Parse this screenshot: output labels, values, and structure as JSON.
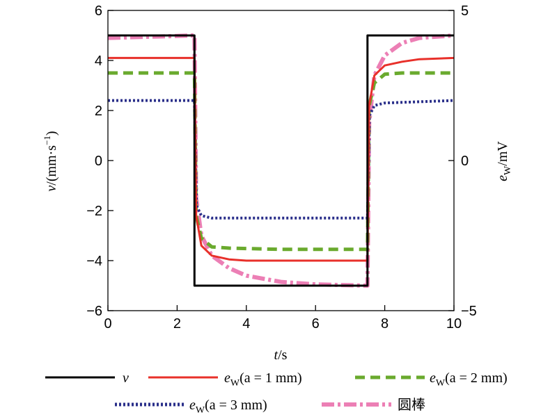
{
  "chart_data": {
    "type": "line",
    "xlabel": "t/s",
    "ylabel_left": "v/(mm·s⁻¹)",
    "ylabel_right": "e_W/mV",
    "xlim": [
      0,
      10
    ],
    "ylim_left": [
      -6,
      6
    ],
    "ylim_right": [
      -5,
      5
    ],
    "x_ticks": [
      "0",
      "2",
      "4",
      "6",
      "8",
      "10"
    ],
    "y_ticks_left": [
      "6",
      "4",
      "2",
      "0",
      "−2",
      "−4",
      "−6"
    ],
    "y_ticks_right": [
      "5",
      "0",
      "−5"
    ],
    "grid": false,
    "legend_position": "bottom",
    "series": [
      {
        "name": "v",
        "color": "#000000",
        "style": "solid",
        "axis": "left",
        "x": [
          0,
          2.5,
          2.5,
          7.5,
          7.5,
          10
        ],
        "y": [
          5,
          5,
          -5,
          -5,
          5,
          5
        ]
      },
      {
        "name": "e_W(a = 1 mm)",
        "color": "#e8302a",
        "style": "solid",
        "axis": "left",
        "x": [
          0,
          2.5,
          2.55,
          2.7,
          3.0,
          3.5,
          4,
          5,
          7.5,
          7.55,
          7.7,
          8.0,
          8.5,
          9,
          10
        ],
        "y": [
          4.1,
          4.1,
          -2.2,
          -3.4,
          -3.8,
          -3.95,
          -4.0,
          -4.0,
          -4.0,
          2.2,
          3.4,
          3.8,
          3.95,
          4.05,
          4.1
        ]
      },
      {
        "name": "e_W(a = 2 mm)",
        "color": "#6aaa2e",
        "style": "dashed",
        "axis": "left",
        "x": [
          0,
          2.5,
          2.55,
          2.7,
          3.0,
          3.5,
          5,
          7.5,
          7.55,
          7.7,
          8.0,
          8.5,
          10
        ],
        "y": [
          3.5,
          3.5,
          -2.2,
          -3.1,
          -3.45,
          -3.5,
          -3.55,
          -3.55,
          2.2,
          3.1,
          3.45,
          3.5,
          3.5
        ]
      },
      {
        "name": "e_W(a = 3 mm)",
        "color": "#2a2f8a",
        "style": "dotted",
        "axis": "left",
        "x": [
          0,
          2.5,
          2.56,
          2.7,
          3.0,
          5,
          7.5,
          7.56,
          7.7,
          8.0,
          10
        ],
        "y": [
          2.4,
          2.4,
          -1.8,
          -2.2,
          -2.3,
          -2.3,
          -2.3,
          1.8,
          2.2,
          2.3,
          2.4
        ]
      },
      {
        "name": "圆棒",
        "color": "#ec7fb5",
        "style": "dashdot",
        "axis": "left",
        "x": [
          0,
          2.5,
          2.55,
          2.7,
          3.0,
          3.5,
          4.0,
          5.0,
          6.0,
          7.5,
          7.55,
          7.7,
          8.0,
          8.5,
          9.0,
          10
        ],
        "y": [
          4.9,
          5.0,
          -1.5,
          -3.0,
          -3.8,
          -4.3,
          -4.6,
          -4.85,
          -4.95,
          -5.0,
          1.5,
          3.4,
          4.2,
          4.7,
          4.9,
          5.0
        ]
      }
    ]
  },
  "legend": {
    "items": [
      {
        "base": "v",
        "sub": "",
        "paren": ""
      },
      {
        "base": "e",
        "sub": "W",
        "paren": "(a = 1 mm)"
      },
      {
        "base": "e",
        "sub": "W",
        "paren": "(a = 2 mm)"
      },
      {
        "base": "e",
        "sub": "W",
        "paren": "(a = 3 mm)"
      },
      {
        "base": "圆棒",
        "sub": "",
        "paren": ""
      }
    ]
  },
  "axis_titles": {
    "x": {
      "var": "t",
      "unit": "/s"
    },
    "y_left": {
      "var": "v",
      "unit": "/(mm·s",
      "sup": "−1",
      "close": ")"
    },
    "y_right": {
      "var": "e",
      "sub": "W",
      "unit": "/mV"
    }
  }
}
